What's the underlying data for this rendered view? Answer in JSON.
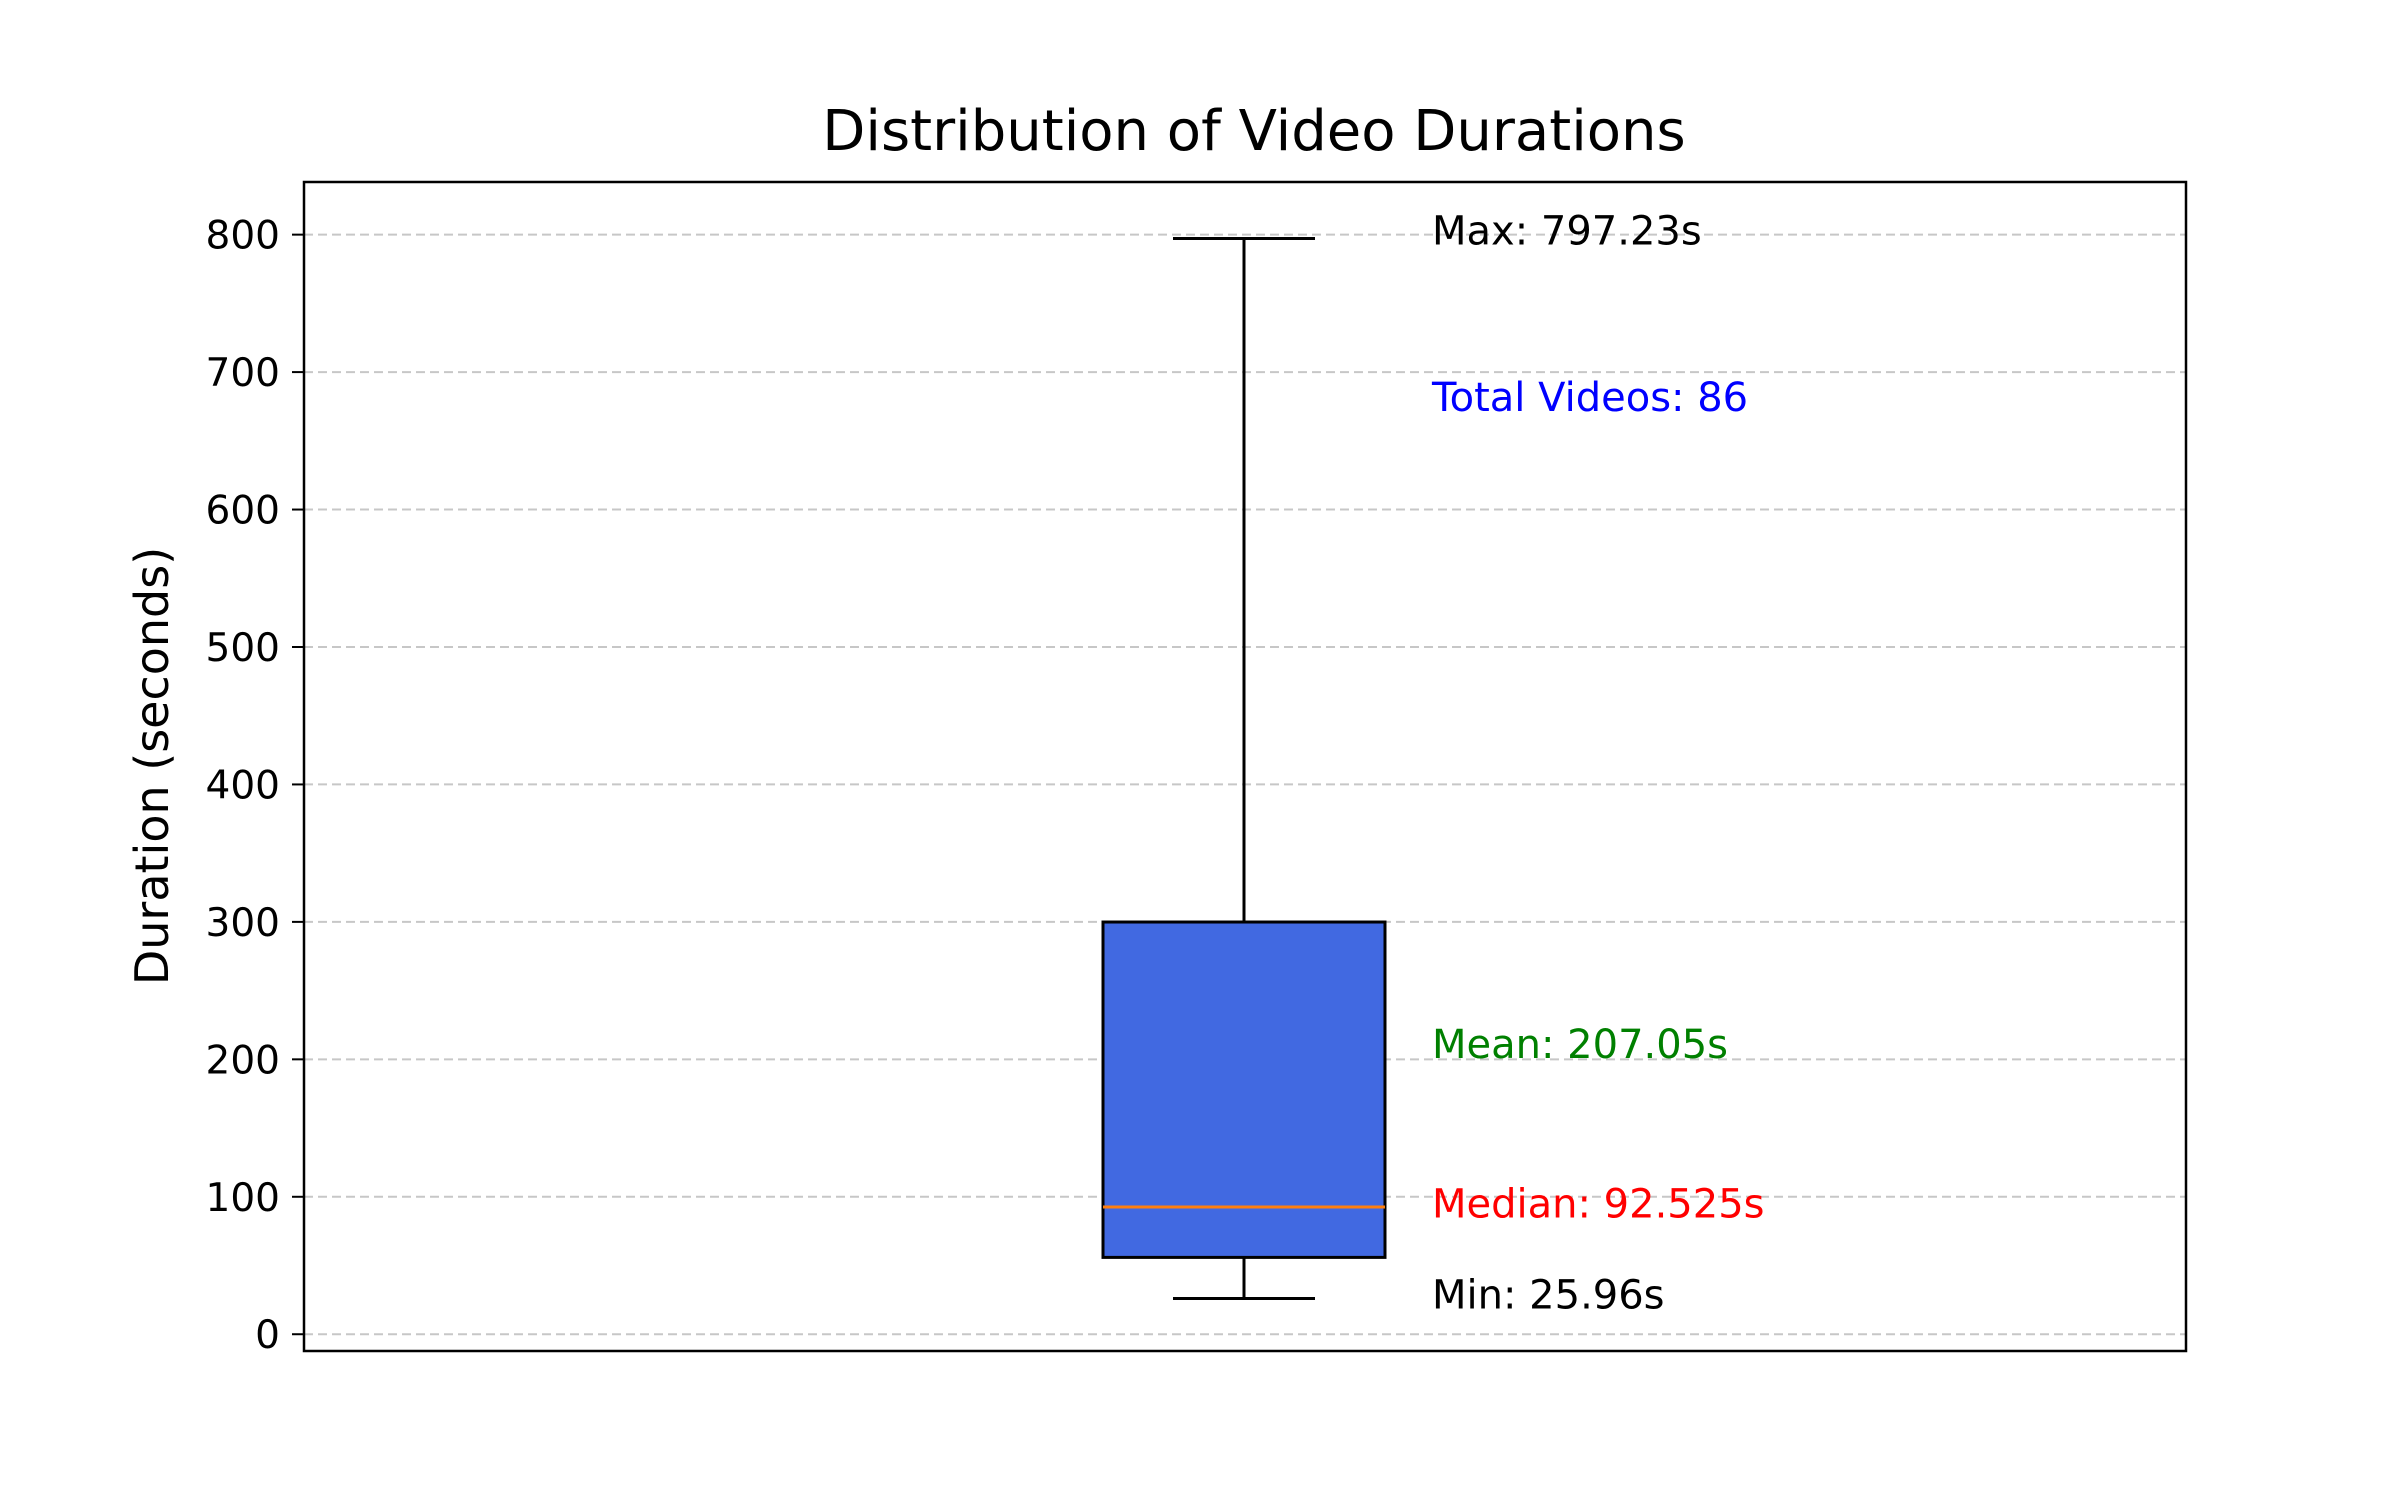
{
  "chart_data": {
    "type": "box",
    "title": "Distribution of Video Durations",
    "xlabel": "",
    "ylabel": "Duration (seconds)",
    "ylim": [
      -12.2,
      838.3
    ],
    "yticks": [
      0,
      100,
      200,
      300,
      400,
      500,
      600,
      700,
      800
    ],
    "grid": {
      "axis": "y",
      "style": "dashed"
    },
    "stats": {
      "min": 25.96,
      "q1": 55.9,
      "median": 92.525,
      "q3": 299.9,
      "max": 797.23,
      "mean": 207.05,
      "count": 86
    },
    "annotations": [
      {
        "key": "max",
        "text": "Max: 797.23s",
        "y": 803,
        "color": "#000000"
      },
      {
        "key": "total",
        "text": "Total Videos: 86",
        "y": 682,
        "color": "#0000ff"
      },
      {
        "key": "mean",
        "text": "Mean: 207.05s",
        "y": 211,
        "color": "#008000"
      },
      {
        "key": "median",
        "text": "Median: 92.525s",
        "y": 95,
        "color": "#ff0000"
      },
      {
        "key": "min",
        "text": "Min: 25.96s",
        "y": 29,
        "color": "#000000"
      }
    ],
    "colors": {
      "box_fill": "#4169e1",
      "median_line": "#ff7f0e",
      "grid": "#b0b0b0",
      "axis": "#000000"
    }
  }
}
